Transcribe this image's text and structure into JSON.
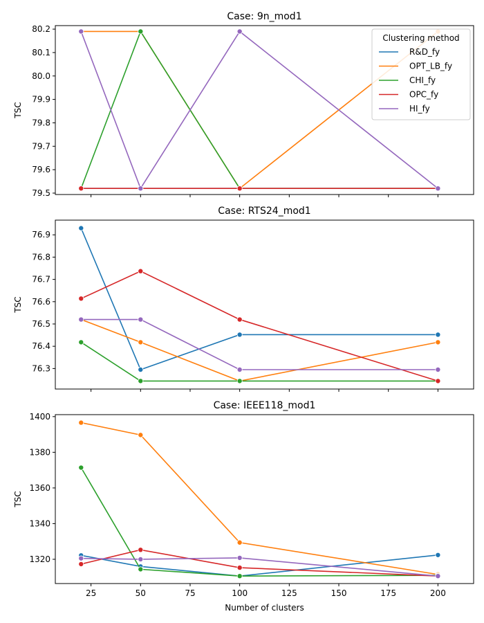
{
  "chart_data": [
    {
      "type": "line",
      "title": "Case: 9n_mod1",
      "xlabel": "",
      "ylabel": "TSC",
      "x": [
        20,
        50,
        100,
        200
      ],
      "xlim": [
        7,
        218
      ],
      "xticks": [
        25,
        50,
        75,
        100,
        125,
        150,
        175,
        200
      ],
      "show_xticklabels": false,
      "ylim": [
        79.494,
        80.215
      ],
      "yticks": [
        79.5,
        79.6,
        79.7,
        79.8,
        79.9,
        80.0,
        80.1,
        80.2
      ],
      "yticklabels": [
        "79.5",
        "79.6",
        "79.7",
        "79.8",
        "79.9",
        "80.0",
        "80.1",
        "80.2"
      ],
      "legend": {
        "title": "Clustering method",
        "placement": "top-right"
      },
      "series": [
        {
          "name": "R&D_fy",
          "color": "#1f77b4",
          "values": [
            79.52,
            79.52,
            79.52,
            79.52
          ]
        },
        {
          "name": "OPT_LB_fy",
          "color": "#ff7f0e",
          "values": [
            80.19,
            80.19,
            79.52,
            80.19
          ]
        },
        {
          "name": "CHI_fy",
          "color": "#2ca02c",
          "values": [
            79.52,
            80.19,
            79.52,
            79.52
          ]
        },
        {
          "name": "OPC_fy",
          "color": "#d62728",
          "values": [
            79.52,
            79.52,
            79.52,
            79.52
          ]
        },
        {
          "name": "HI_fy",
          "color": "#9467bd",
          "values": [
            80.19,
            79.52,
            80.19,
            79.52
          ]
        }
      ]
    },
    {
      "type": "line",
      "title": "Case: RTS24_mod1",
      "xlabel": "",
      "ylabel": "TSC",
      "x": [
        20,
        50,
        100,
        200
      ],
      "xlim": [
        7,
        218
      ],
      "xticks": [
        25,
        50,
        75,
        100,
        125,
        150,
        175,
        200
      ],
      "show_xticklabels": false,
      "ylim": [
        76.208,
        76.966
      ],
      "yticks": [
        76.3,
        76.4,
        76.5,
        76.6,
        76.7,
        76.8,
        76.9
      ],
      "yticklabels": [
        "76.3",
        "76.4",
        "76.5",
        "76.6",
        "76.7",
        "76.8",
        "76.9"
      ],
      "series": [
        {
          "name": "R&D_fy",
          "color": "#1f77b4",
          "values": [
            76.93,
            76.295,
            76.452,
            76.452
          ]
        },
        {
          "name": "OPT_LB_fy",
          "color": "#ff7f0e",
          "values": [
            76.52,
            76.418,
            76.244,
            76.418
          ]
        },
        {
          "name": "CHI_fy",
          "color": "#2ca02c",
          "values": [
            76.418,
            76.244,
            76.244,
            76.244
          ]
        },
        {
          "name": "OPC_fy",
          "color": "#d62728",
          "values": [
            76.614,
            76.737,
            76.52,
            76.244
          ]
        },
        {
          "name": "HI_fy",
          "color": "#9467bd",
          "values": [
            76.52,
            76.52,
            76.295,
            76.295
          ]
        }
      ]
    },
    {
      "type": "line",
      "title": "Case: IEEE118_mod1",
      "xlabel": "Number of clusters",
      "ylabel": "TSC",
      "x": [
        20,
        50,
        100,
        200
      ],
      "xlim": [
        7,
        218
      ],
      "xticks": [
        25,
        50,
        75,
        100,
        125,
        150,
        175,
        200
      ],
      "xticklabels": [
        "25",
        "50",
        "75",
        "100",
        "125",
        "150",
        "175",
        "200"
      ],
      "show_xticklabels": true,
      "ylim": [
        1306.4,
        1401.1
      ],
      "yticks": [
        1320,
        1340,
        1360,
        1380,
        1400
      ],
      "yticklabels": [
        "1320",
        "1340",
        "1360",
        "1380",
        "1400"
      ],
      "series": [
        {
          "name": "R&D_fy",
          "color": "#1f77b4",
          "values": [
            1322.2,
            1316.0,
            1310.6,
            1322.4
          ]
        },
        {
          "name": "OPT_LB_fy",
          "color": "#ff7f0e",
          "values": [
            1396.6,
            1389.7,
            1329.4,
            1311.5
          ]
        },
        {
          "name": "CHI_fy",
          "color": "#2ca02c",
          "values": [
            1371.4,
            1314.4,
            1310.6,
            1311.0
          ]
        },
        {
          "name": "OPC_fy",
          "color": "#d62728",
          "values": [
            1317.3,
            1325.3,
            1315.3,
            1310.6
          ]
        },
        {
          "name": "HI_fy",
          "color": "#9467bd",
          "values": [
            1320.5,
            1320.0,
            1320.8,
            1310.6
          ]
        }
      ]
    }
  ]
}
